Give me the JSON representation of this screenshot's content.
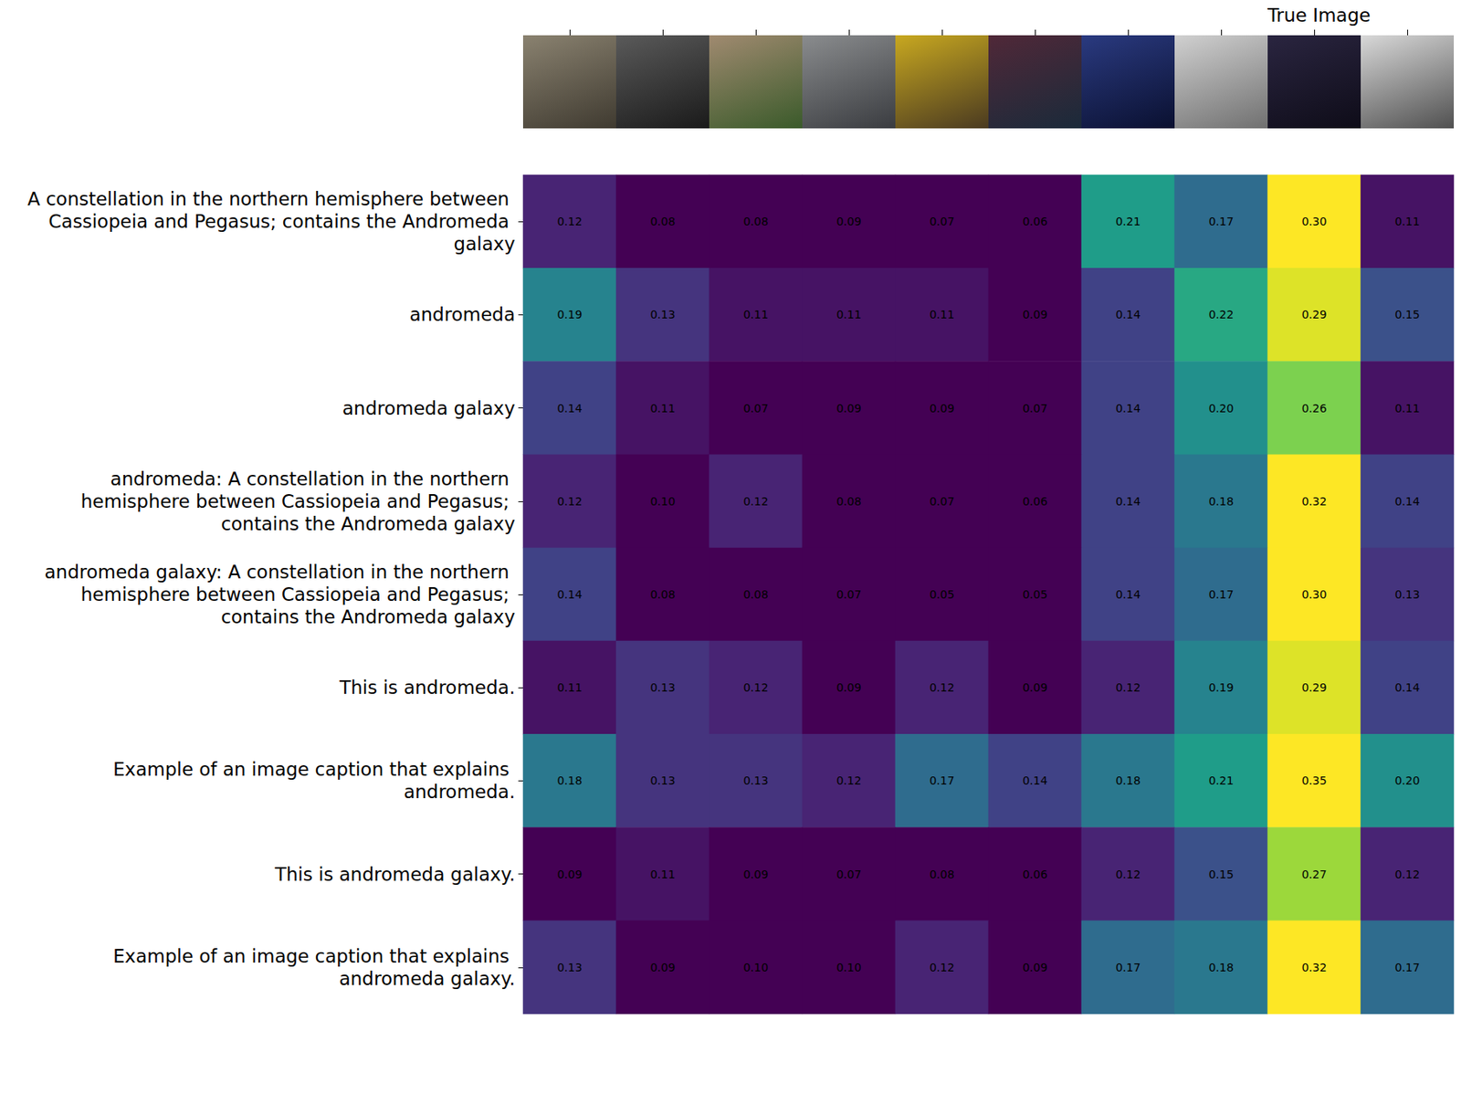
{
  "chart_data": {
    "type": "heatmap",
    "categories": [
      null,
      null,
      null,
      null,
      null,
      null,
      null,
      null,
      null,
      null
    ],
    "rows": [
      "A constellation in the northern hemisphere between Cassiopeia and Pegasus; contains the Andromeda galaxy",
      "andromeda",
      "andromeda galaxy",
      "andromeda: A constellation in the northern hemisphere between Cassiopeia and Pegasus; contains the Andromeda galaxy",
      "andromeda galaxy: A constellation in the northern hemisphere between Cassiopeia and Pegasus; contains the Andromeda galaxy",
      "This is andromeda.",
      "Example of an image caption that explains andromeda.",
      "This is andromeda galaxy.",
      "Example of an image caption that explains andromeda galaxy."
    ],
    "values": [
      [
        0.12,
        0.08,
        0.08,
        0.09,
        0.07,
        0.06,
        0.21,
        0.17,
        0.3,
        0.11
      ],
      [
        0.19,
        0.13,
        0.11,
        0.11,
        0.11,
        0.09,
        0.14,
        0.22,
        0.29,
        0.15
      ],
      [
        0.14,
        0.11,
        0.07,
        0.09,
        0.09,
        0.07,
        0.14,
        0.2,
        0.26,
        0.11
      ],
      [
        0.12,
        0.1,
        0.12,
        0.08,
        0.07,
        0.06,
        0.14,
        0.18,
        0.32,
        0.14
      ],
      [
        0.14,
        0.08,
        0.08,
        0.07,
        0.05,
        0.05,
        0.14,
        0.17,
        0.3,
        0.13
      ],
      [
        0.11,
        0.13,
        0.12,
        0.09,
        0.12,
        0.09,
        0.12,
        0.19,
        0.29,
        0.14
      ],
      [
        0.18,
        0.13,
        0.13,
        0.12,
        0.17,
        0.14,
        0.18,
        0.21,
        0.35,
        0.2
      ],
      [
        0.09,
        0.11,
        0.09,
        0.07,
        0.08,
        0.06,
        0.12,
        0.15,
        0.27,
        0.12
      ],
      [
        0.13,
        0.09,
        0.1,
        0.1,
        0.12,
        0.09,
        0.17,
        0.18,
        0.32,
        0.17
      ]
    ],
    "value_labels": [
      [
        "0.12",
        "0.08",
        "0.08",
        "0.09",
        "0.07",
        "0.06",
        "0.21",
        "0.17",
        "0.30",
        "0.11"
      ],
      [
        "0.19",
        "0.13",
        "0.11",
        "0.11",
        "0.11",
        "0.09",
        "0.14",
        "0.22",
        "0.29",
        "0.15"
      ],
      [
        "0.14",
        "0.11",
        "0.07",
        "0.09",
        "0.09",
        "0.07",
        "0.14",
        "0.20",
        "0.26",
        "0.11"
      ],
      [
        "0.12",
        "0.10",
        "0.12",
        "0.08",
        "0.07",
        "0.06",
        "0.14",
        "0.18",
        "0.32",
        "0.14"
      ],
      [
        "0.14",
        "0.08",
        "0.08",
        "0.07",
        "0.05",
        "0.05",
        "0.14",
        "0.17",
        "0.30",
        "0.13"
      ],
      [
        "0.11",
        "0.13",
        "0.12",
        "0.09",
        "0.12",
        "0.09",
        "0.12",
        "0.19",
        "0.29",
        "0.14"
      ],
      [
        "0.18",
        "0.13",
        "0.13",
        "0.12",
        "0.17",
        "0.14",
        "0.18",
        "0.21",
        "0.35",
        "0.20"
      ],
      [
        "0.09",
        "0.11",
        "0.09",
        "0.07",
        "0.08",
        "0.06",
        "0.12",
        "0.15",
        "0.27",
        "0.12"
      ],
      [
        "0.13",
        "0.09",
        "0.10",
        "0.10",
        "0.12",
        "0.09",
        "0.17",
        "0.18",
        "0.32",
        "0.17"
      ]
    ],
    "color_range": [
      0.1,
      0.3
    ],
    "data_labels": true,
    "annotations": [
      {
        "text": "True Image",
        "column": 8
      }
    ]
  }
}
